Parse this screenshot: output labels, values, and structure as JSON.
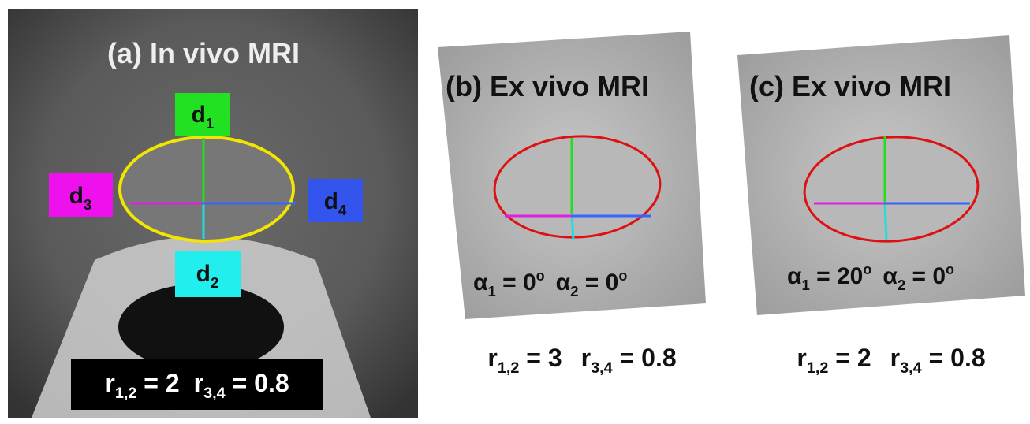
{
  "panels": [
    {
      "title": "(a) In vivo MRI",
      "labels": [
        {
          "base": "d",
          "sub": "1"
        },
        {
          "base": "d",
          "sub": "2"
        },
        {
          "base": "d",
          "sub": "3"
        },
        {
          "base": "d",
          "sub": "4"
        }
      ],
      "ratios": [
        {
          "base": "r",
          "sub": "1,2",
          "rel": " = 2"
        },
        {
          "base": "r",
          "sub": "3,4",
          "rel": " = 0.8"
        }
      ]
    },
    {
      "title": "(b) Ex vivo MRI",
      "angles": [
        {
          "base": "α",
          "sub": "1",
          "rel": " = 0",
          "sup": "o"
        },
        {
          "base": "α",
          "sub": "2",
          "rel": " = 0",
          "sup": "o"
        }
      ],
      "ratios": [
        {
          "base": "r",
          "sub": "1,2",
          "rel": " = 3"
        },
        {
          "base": "r",
          "sub": "3,4",
          "rel": " = 0.8"
        }
      ]
    },
    {
      "title": "(c) Ex vivo MRI",
      "angles": [
        {
          "base": "α",
          "sub": "1",
          "rel": " = 20",
          "sup": "o"
        },
        {
          "base": "α",
          "sub": "2",
          "rel": " = 0",
          "sup": "o"
        }
      ],
      "ratios": [
        {
          "base": "r",
          "sub": "1,2",
          "rel": " = 2"
        },
        {
          "base": "r",
          "sub": "3,4",
          "rel": " = 0.8"
        }
      ]
    }
  ]
}
